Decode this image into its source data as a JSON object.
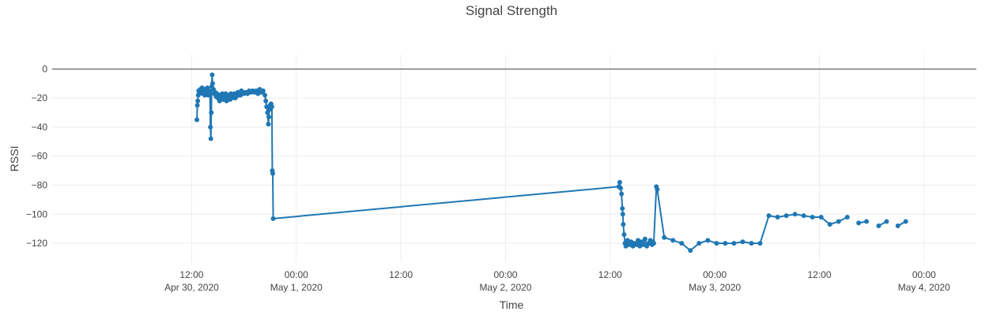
{
  "chart_data": {
    "type": "line",
    "title": "Signal Strength",
    "xlabel": "Time",
    "ylabel": "RSSI",
    "ylim": [
      -133,
      10
    ],
    "xlim_hours": [
      -4,
      102
    ],
    "time_origin": "Apr 30, 2020 00:00",
    "x_ticks": [
      {
        "hours": 12,
        "time": "12:00",
        "date": "Apr 30, 2020"
      },
      {
        "hours": 24,
        "time": "00:00",
        "date": "May 1, 2020"
      },
      {
        "hours": 36,
        "time": "12:00",
        "date": ""
      },
      {
        "hours": 48,
        "time": "00:00",
        "date": "May 2, 2020"
      },
      {
        "hours": 60,
        "time": "12:00",
        "date": ""
      },
      {
        "hours": 72,
        "time": "00:00",
        "date": "May 3, 2020"
      },
      {
        "hours": 84,
        "time": "12:00",
        "date": ""
      },
      {
        "hours": 96,
        "time": "00:00",
        "date": "May 4, 2020"
      }
    ],
    "y_ticks": [
      0,
      -20,
      -40,
      -60,
      -80,
      -100,
      -120
    ],
    "color": "#1f77b4",
    "series": [
      {
        "name": "RSSI",
        "segments": [
          [
            [
              12.6,
              -35
            ],
            [
              12.65,
              -25
            ],
            [
              12.7,
              -22
            ],
            [
              12.75,
              -18
            ],
            [
              12.8,
              -15
            ],
            [
              12.9,
              -17
            ],
            [
              13.0,
              -14
            ],
            [
              13.1,
              -16
            ],
            [
              13.2,
              -13
            ],
            [
              13.3,
              -17
            ],
            [
              13.4,
              -15
            ],
            [
              13.5,
              -18
            ],
            [
              13.6,
              -14
            ],
            [
              13.7,
              -16
            ],
            [
              13.8,
              -13
            ],
            [
              13.9,
              -18
            ],
            [
              14.0,
              -15
            ],
            [
              14.1,
              -17
            ],
            [
              14.15,
              -40
            ],
            [
              14.2,
              -48
            ],
            [
              14.25,
              -30
            ],
            [
              14.3,
              -12
            ],
            [
              14.35,
              -4
            ],
            [
              14.4,
              -10
            ],
            [
              14.5,
              -14
            ],
            [
              14.6,
              -17
            ],
            [
              14.7,
              -16
            ],
            [
              14.8,
              -19
            ],
            [
              14.9,
              -17
            ],
            [
              15.0,
              -20
            ],
            [
              15.1,
              -18
            ],
            [
              15.2,
              -22
            ],
            [
              15.3,
              -18
            ],
            [
              15.4,
              -20
            ],
            [
              15.5,
              -17
            ],
            [
              15.6,
              -21
            ],
            [
              15.7,
              -18
            ],
            [
              15.8,
              -20
            ],
            [
              15.9,
              -17
            ],
            [
              16.0,
              -22
            ],
            [
              16.1,
              -18
            ],
            [
              16.2,
              -20
            ],
            [
              16.3,
              -18
            ],
            [
              16.4,
              -21
            ],
            [
              16.5,
              -17
            ],
            [
              16.6,
              -20
            ],
            [
              16.7,
              -19
            ],
            [
              16.8,
              -18
            ],
            [
              16.9,
              -17
            ],
            [
              17.0,
              -20
            ],
            [
              17.1,
              -19
            ],
            [
              17.2,
              -18
            ],
            [
              17.3,
              -16
            ],
            [
              17.4,
              -18
            ],
            [
              17.5,
              -17
            ],
            [
              17.6,
              -18
            ],
            [
              17.7,
              -15
            ],
            [
              17.8,
              -17
            ],
            [
              17.9,
              -16
            ],
            [
              18.0,
              -17
            ],
            [
              18.2,
              -16
            ],
            [
              18.4,
              -17
            ],
            [
              18.6,
              -15
            ],
            [
              18.8,
              -16
            ],
            [
              19.0,
              -15
            ],
            [
              19.2,
              -16
            ],
            [
              19.4,
              -15
            ],
            [
              19.6,
              -17
            ],
            [
              19.8,
              -14
            ],
            [
              20.0,
              -16
            ],
            [
              20.2,
              -15
            ],
            [
              20.4,
              -18
            ],
            [
              20.5,
              -22
            ],
            [
              20.6,
              -26
            ],
            [
              20.7,
              -30
            ],
            [
              20.8,
              -38
            ],
            [
              20.85,
              -33
            ],
            [
              20.9,
              -28
            ],
            [
              21.0,
              -25
            ],
            [
              21.1,
              -24
            ],
            [
              21.2,
              -26
            ],
            [
              21.25,
              -70
            ],
            [
              21.3,
              -72
            ],
            [
              21.35,
              -103
            ],
            [
              61.0,
              -81
            ],
            [
              61.1,
              -78
            ],
            [
              61.2,
              -82
            ],
            [
              61.3,
              -86
            ],
            [
              61.4,
              -96
            ],
            [
              61.45,
              -100
            ],
            [
              61.5,
              -107
            ],
            [
              61.6,
              -114
            ],
            [
              61.7,
              -120
            ],
            [
              61.8,
              -122
            ],
            [
              62.0,
              -118
            ],
            [
              62.2,
              -121
            ],
            [
              62.4,
              -119
            ],
            [
              62.6,
              -122
            ],
            [
              62.8,
              -120
            ],
            [
              63.0,
              -121
            ],
            [
              63.2,
              -118
            ],
            [
              63.4,
              -122
            ],
            [
              63.6,
              -119
            ],
            [
              63.8,
              -121
            ],
            [
              64.0,
              -117
            ],
            [
              64.2,
              -122
            ],
            [
              64.4,
              -120
            ],
            [
              64.6,
              -118
            ],
            [
              64.8,
              -121
            ],
            [
              64.9,
              -119
            ],
            [
              65.0,
              -120
            ],
            [
              65.3,
              -81
            ],
            [
              65.4,
              -83
            ],
            [
              66.2,
              -116
            ],
            [
              67.2,
              -118
            ],
            [
              68.2,
              -120
            ],
            [
              69.2,
              -125
            ],
            [
              70.2,
              -120
            ],
            [
              71.2,
              -118
            ],
            [
              72.2,
              -120
            ],
            [
              73.2,
              -120
            ],
            [
              74.2,
              -120
            ],
            [
              75.2,
              -119
            ],
            [
              76.2,
              -120
            ],
            [
              77.2,
              -120
            ],
            [
              78.2,
              -101
            ],
            [
              79.2,
              -102
            ],
            [
              80.2,
              -101
            ],
            [
              81.2,
              -100
            ],
            [
              82.2,
              -101
            ],
            [
              83.2,
              -102
            ],
            [
              84.2,
              -102
            ],
            [
              85.2,
              -107
            ],
            [
              86.2,
              -105
            ],
            [
              87.2,
              -102
            ]
          ],
          [
            [
              88.5,
              -106
            ],
            [
              89.4,
              -105
            ]
          ],
          [
            [
              90.8,
              -108
            ],
            [
              91.7,
              -105
            ]
          ],
          [
            [
              93.0,
              -108
            ],
            [
              93.9,
              -105
            ]
          ]
        ]
      }
    ]
  }
}
